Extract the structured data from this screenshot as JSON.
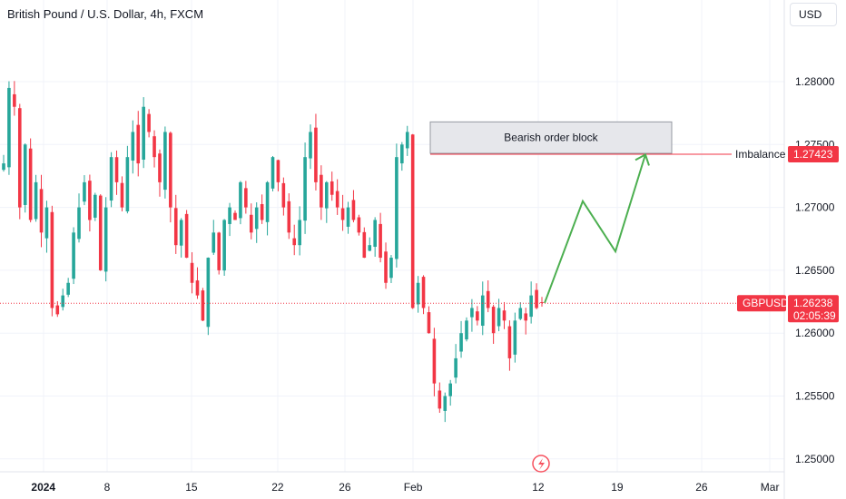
{
  "header": {
    "title": "British Pound / U.S. Dollar, 4h, FXCM",
    "currency": "USD"
  },
  "annotations": {
    "order_block_label": "Bearish order block",
    "imbalance_label": "Imbalance",
    "imbalance_price": "1.27423",
    "symbol_label": "GBPUSD",
    "last_price": "1.26238",
    "countdown": "02:05:39"
  },
  "colors": {
    "up": "#26a69a",
    "down": "#f23645",
    "projection": "#4caf50",
    "block_fill": "#e6e7eb",
    "grid": "#f0f3fa"
  },
  "chart_data": {
    "type": "candlestick",
    "title": "British Pound / U.S. Dollar, 4h, FXCM",
    "ylim": [
      1.2485,
      1.2885
    ],
    "y_ticks": [
      "1.25000",
      "1.25500",
      "1.26000",
      "1.26500",
      "1.27000",
      "1.27500",
      "1.28000"
    ],
    "x_ticks": [
      "2024",
      "8",
      "15",
      "22",
      "26",
      "Feb",
      "12",
      "19",
      "26",
      "Mar"
    ],
    "grid": true,
    "candles_close_path": [
      1.2735,
      1.2795,
      1.278,
      1.27,
      1.275,
      1.269,
      1.272,
      1.268,
      1.27,
      1.262,
      1.2615,
      1.263,
      1.264,
      1.268,
      1.27,
      1.272,
      1.269,
      1.271,
      1.265,
      1.27,
      1.274,
      1.272,
      1.27,
      1.274,
      1.276,
      1.2735,
      1.278,
      1.276,
      1.274,
      1.272,
      1.276,
      1.27,
      1.267,
      1.269,
      1.266,
      1.264,
      1.263,
      1.261,
      1.266,
      1.268,
      1.265,
      1.269,
      1.27,
      1.269,
      1.272,
      1.27,
      1.268,
      1.27,
      1.269,
      1.272,
      1.274,
      1.272,
      1.27,
      1.268,
      1.267,
      1.269,
      1.274,
      1.276,
      1.272,
      1.27,
      1.272,
      1.271,
      1.27,
      1.269,
      1.27,
      1.269,
      1.268,
      1.266,
      1.267,
      1.269,
      1.266,
      1.264,
      1.266,
      1.274,
      1.275,
      1.276,
      1.262,
      1.264,
      1.262,
      1.26,
      1.256,
      1.254,
      1.255,
      1.256,
      1.258,
      1.26,
      1.261,
      1.262,
      1.261,
      1.263,
      1.262,
      1.26,
      1.262,
      1.261,
      1.258,
      1.261,
      1.262,
      1.261,
      1.263,
      1.262,
      1.2624
    ],
    "order_block": {
      "label": "Bearish order block",
      "top": 1.2768,
      "bottom": 1.2743
    },
    "imbalance": {
      "label": "Imbalance",
      "price": 1.27423
    },
    "last_price": {
      "label": "GBPUSD",
      "price": 1.26238,
      "countdown": "02:05:39"
    },
    "projection_path": [
      1.2624,
      1.2705,
      1.2665,
      1.2742
    ]
  }
}
